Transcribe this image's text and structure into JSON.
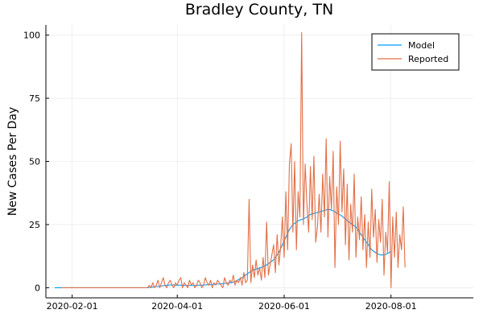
{
  "chart_data": {
    "type": "line",
    "title": "Bradley County, TN",
    "xlabel": "",
    "ylabel": "New Cases Per Day",
    "x_start": "2020-01-22",
    "xlim": [
      "2020-01-17",
      "2020-09-17"
    ],
    "ylim": [
      -4,
      104
    ],
    "x_ticks": [
      "2020-02-01",
      "2020-04-01",
      "2020-06-01",
      "2020-08-01"
    ],
    "y_ticks": [
      0,
      25,
      50,
      75,
      100
    ],
    "grid": true,
    "legend_position": "top-right",
    "series": [
      {
        "name": "Model",
        "color": "#009AFA",
        "values": [
          0,
          0,
          0,
          0,
          0,
          0,
          0,
          0,
          0,
          0,
          0,
          0,
          0,
          0,
          0,
          0,
          0,
          0,
          0,
          0,
          0,
          0,
          0,
          0,
          0,
          0,
          0,
          0,
          0,
          0,
          0,
          0,
          0,
          0,
          0,
          0,
          0,
          0,
          0,
          0,
          0,
          0,
          0,
          0,
          0,
          0,
          0,
          0,
          0,
          0,
          0,
          0,
          0,
          0,
          0.1,
          0.2,
          0.3,
          0.4,
          0.5,
          0.5,
          0.6,
          0.7,
          0.8,
          0.9,
          1.0,
          1.0,
          1.1,
          1.1,
          1.1,
          1.0,
          1.0,
          1.0,
          1.0,
          1.0,
          0.9,
          0.9,
          0.9,
          0.9,
          0.9,
          0.9,
          0.9,
          1.0,
          1.0,
          1.0,
          1.0,
          1.1,
          1.1,
          1.2,
          1.2,
          1.2,
          1.3,
          1.4,
          1.4,
          1.5,
          1.5,
          1.6,
          1.6,
          1.7,
          1.8,
          1.8,
          1.9,
          2.0,
          2.2,
          2.5,
          2.8,
          3.2,
          3.6,
          4.0,
          4.5,
          5.0,
          5.5,
          6.0,
          6.5,
          7.0,
          7.2,
          7.4,
          7.6,
          7.8,
          8.0,
          8.3,
          8.7,
          9.0,
          9.5,
          10.0,
          10.5,
          11.0,
          12.0,
          13.0,
          14.0,
          15.5,
          17.0,
          18.5,
          20.0,
          21.5,
          23.0,
          24.0,
          25.0,
          25.5,
          26.0,
          26.5,
          26.8,
          27.0,
          27.3,
          27.6,
          28.0,
          28.5,
          29.0,
          29.2,
          29.4,
          29.6,
          29.8,
          30.0,
          30.2,
          30.4,
          30.6,
          30.8,
          31.0,
          30.9,
          30.7,
          30.4,
          30.0,
          29.6,
          29.2,
          28.8,
          28.4,
          27.8,
          27.2,
          26.6,
          26.0,
          25.5,
          25.0,
          24.5,
          24.0,
          23.0,
          22.0,
          21.0,
          20.0,
          19.0,
          18.0,
          17.0,
          16.0,
          15.0,
          14.5,
          14.0,
          13.5,
          13.2,
          13.0,
          13.0,
          13.0,
          13.2,
          13.5,
          14.0,
          14.5
        ]
      },
      {
        "name": "Reported",
        "color": "#E26F46",
        "start_index": 4,
        "values": [
          0,
          0,
          0,
          0,
          0,
          0,
          0,
          0,
          0,
          0,
          0,
          0,
          0,
          0,
          0,
          0,
          0,
          0,
          0,
          0,
          0,
          0,
          0,
          0,
          0,
          0,
          0,
          0,
          0,
          0,
          0,
          0,
          0,
          0,
          0,
          0,
          0,
          0,
          0,
          0,
          0,
          0,
          0,
          0,
          0,
          0,
          0,
          0,
          0,
          0,
          1,
          0,
          2,
          0,
          1,
          3,
          0,
          2,
          4,
          1,
          0,
          2,
          3,
          1,
          0,
          2,
          1,
          3,
          4,
          0,
          2,
          1,
          0,
          3,
          1,
          2,
          0,
          1,
          3,
          2,
          0,
          1,
          4,
          2,
          1,
          3,
          0,
          2,
          1,
          3,
          2,
          1,
          0,
          4,
          2,
          1,
          3,
          2,
          5,
          1,
          3,
          2,
          4,
          1,
          6,
          2,
          3,
          35,
          2,
          9,
          4,
          11,
          5,
          8,
          3,
          12,
          4,
          26,
          5,
          9,
          13,
          17,
          6,
          21,
          9,
          16,
          28,
          12,
          38,
          15,
          49,
          57,
          22,
          50,
          15,
          38,
          28,
          101,
          25,
          49,
          33,
          22,
          48,
          27,
          52,
          18,
          24,
          37,
          22,
          45,
          28,
          59,
          20,
          44,
          31,
          54,
          8,
          40,
          25,
          58,
          30,
          47,
          17,
          41,
          11,
          33,
          22,
          45,
          12,
          28,
          19,
          36,
          15,
          29,
          8,
          26,
          12,
          39,
          20,
          31,
          10,
          27,
          18,
          35,
          5,
          22,
          14,
          42,
          0,
          28,
          12,
          30,
          8,
          21,
          15,
          32,
          8
        ]
      }
    ]
  }
}
